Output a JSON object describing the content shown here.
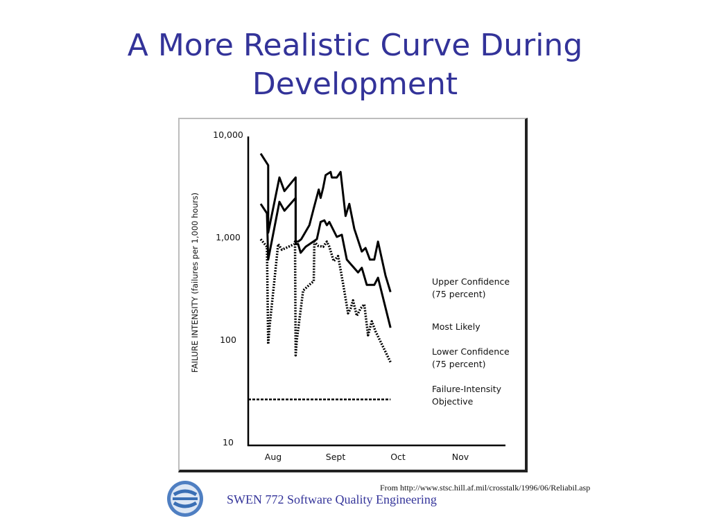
{
  "slide": {
    "title_line1": "A More Realistic Curve During",
    "title_line2": "Development"
  },
  "chart_data": {
    "type": "line",
    "ylabel": "FAILURE INTENSITY  (failures per 1,000 hours)",
    "y_scale": "log",
    "ylim": [
      10,
      10000
    ],
    "y_ticks": [
      {
        "value": 10000,
        "label": "10,000"
      },
      {
        "value": 1000,
        "label": "1,000"
      },
      {
        "value": 100,
        "label": "100"
      },
      {
        "value": 10,
        "label": "10"
      }
    ],
    "x_ticks": [
      "Aug",
      "Sept",
      "Oct",
      "Nov"
    ],
    "series": [
      {
        "name": "Upper Confidence (75 percent)",
        "style": "solid",
        "points": [
          [
            0.0,
            6500
          ],
          [
            0.12,
            5000
          ],
          [
            0.12,
            1100
          ],
          [
            0.3,
            3800
          ],
          [
            0.38,
            2800
          ],
          [
            0.56,
            3800
          ],
          [
            0.56,
            900
          ],
          [
            0.6,
            900
          ],
          [
            0.65,
            950
          ],
          [
            0.78,
            1300
          ],
          [
            0.85,
            1900
          ],
          [
            0.93,
            2900
          ],
          [
            0.96,
            2400
          ],
          [
            1.0,
            3000
          ],
          [
            1.04,
            4000
          ],
          [
            1.12,
            4300
          ],
          [
            1.14,
            3800
          ],
          [
            1.22,
            3800
          ],
          [
            1.28,
            4300
          ],
          [
            1.36,
            1600
          ],
          [
            1.42,
            2100
          ],
          [
            1.5,
            1200
          ],
          [
            1.62,
            720
          ],
          [
            1.68,
            780
          ],
          [
            1.75,
            600
          ],
          [
            1.82,
            600
          ],
          [
            1.88,
            900
          ],
          [
            2.0,
            420
          ],
          [
            2.08,
            290
          ]
        ]
      },
      {
        "name": "Most Likely",
        "style": "solid",
        "points": [
          [
            0.0,
            2100
          ],
          [
            0.1,
            1700
          ],
          [
            0.12,
            600
          ],
          [
            0.3,
            2200
          ],
          [
            0.38,
            1800
          ],
          [
            0.56,
            2400
          ],
          [
            0.56,
            850
          ],
          [
            0.6,
            850
          ],
          [
            0.64,
            700
          ],
          [
            0.72,
            800
          ],
          [
            0.9,
            950
          ],
          [
            0.96,
            1400
          ],
          [
            1.02,
            1450
          ],
          [
            1.06,
            1300
          ],
          [
            1.1,
            1400
          ],
          [
            1.22,
            1000
          ],
          [
            1.3,
            1050
          ],
          [
            1.38,
            600
          ],
          [
            1.56,
            450
          ],
          [
            1.62,
            500
          ],
          [
            1.7,
            340
          ],
          [
            1.82,
            340
          ],
          [
            1.88,
            400
          ],
          [
            2.08,
            130
          ]
        ]
      },
      {
        "name": "Lower Confidence (75 percent)",
        "style": "dotted",
        "points": [
          [
            0.0,
            950
          ],
          [
            0.1,
            800
          ],
          [
            0.12,
            90
          ],
          [
            0.14,
            130
          ],
          [
            0.28,
            850
          ],
          [
            0.34,
            750
          ],
          [
            0.54,
            850
          ],
          [
            0.55,
            900
          ],
          [
            0.56,
            70
          ],
          [
            0.58,
            100
          ],
          [
            0.68,
            300
          ],
          [
            0.8,
            350
          ],
          [
            0.85,
            370
          ],
          [
            0.86,
            900
          ],
          [
            0.92,
            820
          ],
          [
            1.0,
            800
          ],
          [
            1.06,
            900
          ],
          [
            1.1,
            800
          ],
          [
            1.17,
            580
          ],
          [
            1.24,
            650
          ],
          [
            1.32,
            350
          ],
          [
            1.4,
            180
          ],
          [
            1.44,
            200
          ],
          [
            1.48,
            240
          ],
          [
            1.54,
            170
          ],
          [
            1.6,
            200
          ],
          [
            1.66,
            220
          ],
          [
            1.72,
            110
          ],
          [
            1.78,
            150
          ],
          [
            1.84,
            120
          ],
          [
            2.08,
            60
          ]
        ]
      },
      {
        "name": "Failure-Intensity Objective",
        "style": "dashed",
        "points": [
          [
            -0.2,
            26
          ],
          [
            2.08,
            26
          ]
        ]
      }
    ]
  },
  "source_note": "From http://www.stsc.hill.af.mil/crosstalk/1996/06/Reliabil.asp",
  "footer": {
    "course": "SWEN 772 Software Quality Engineering"
  },
  "logo": {
    "icon": "rit-se-logo",
    "color": "#3a6fb5"
  }
}
